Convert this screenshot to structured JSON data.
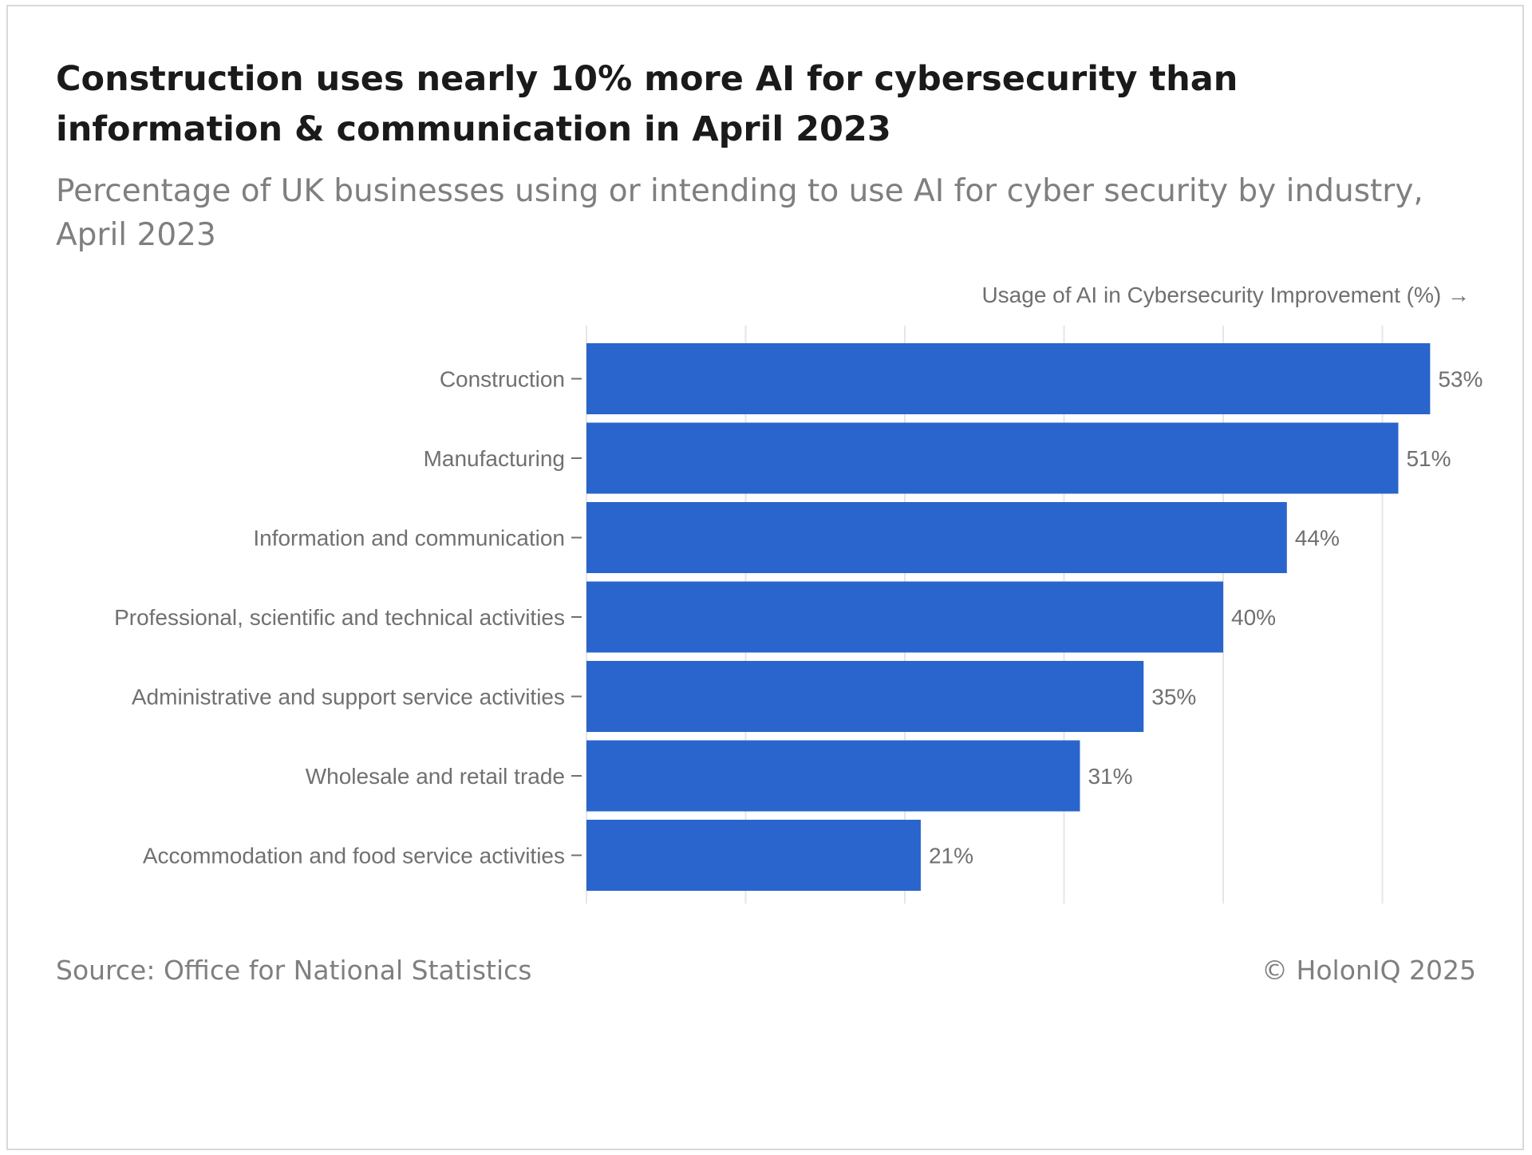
{
  "title": "Construction uses nearly 10% more AI for cybersecurity than information & communication in April 2023",
  "subtitle": "Percentage of UK businesses using or intending to use AI for cyber security by industry, April 2023",
  "source": "Source: Office for National Statistics",
  "credit": "© HolonIQ 2025",
  "colors": {
    "bar": "#2965cc",
    "grid": "#e6e6e6",
    "axis": "#707070"
  },
  "chart_data": {
    "type": "bar",
    "orientation": "horizontal",
    "xlabel": "Usage of AI in Cybersecurity Improvement (%) →",
    "ylabel": "",
    "xlim": [
      0,
      55
    ],
    "grid": true,
    "categories": [
      "Construction",
      "Manufacturing",
      "Information and communication",
      "Professional, scientific and technical activities",
      "Administrative and support service activities",
      "Wholesale and retail trade",
      "Accommodation and food service activities"
    ],
    "values": [
      53,
      51,
      44,
      40,
      35,
      31,
      21
    ],
    "value_labels": [
      "53%",
      "51%",
      "44%",
      "40%",
      "35%",
      "31%",
      "21%"
    ],
    "unit": "%"
  }
}
